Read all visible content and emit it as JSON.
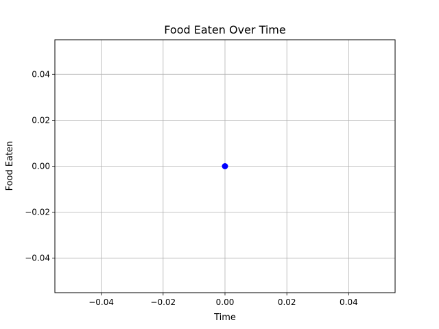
{
  "chart_data": {
    "type": "scatter",
    "title": "Food Eaten Over Time",
    "xlabel": "Time",
    "ylabel": "Food Eaten",
    "xlim": [
      -0.055,
      0.055
    ],
    "ylim": [
      -0.055,
      0.055
    ],
    "xticks": [
      -0.04,
      -0.02,
      0.0,
      0.02,
      0.04
    ],
    "xtick_labels": [
      "−0.04",
      "−0.02",
      "0.00",
      "0.02",
      "0.04"
    ],
    "yticks": [
      -0.04,
      -0.02,
      0.0,
      0.02,
      0.04
    ],
    "ytick_labels": [
      "−0.04",
      "−0.02",
      "0.00",
      "0.02",
      "0.04"
    ],
    "grid": true,
    "series": [
      {
        "x": [
          0.0
        ],
        "y": [
          0.0
        ],
        "color": "#0000ff",
        "marker": "circle"
      }
    ]
  }
}
